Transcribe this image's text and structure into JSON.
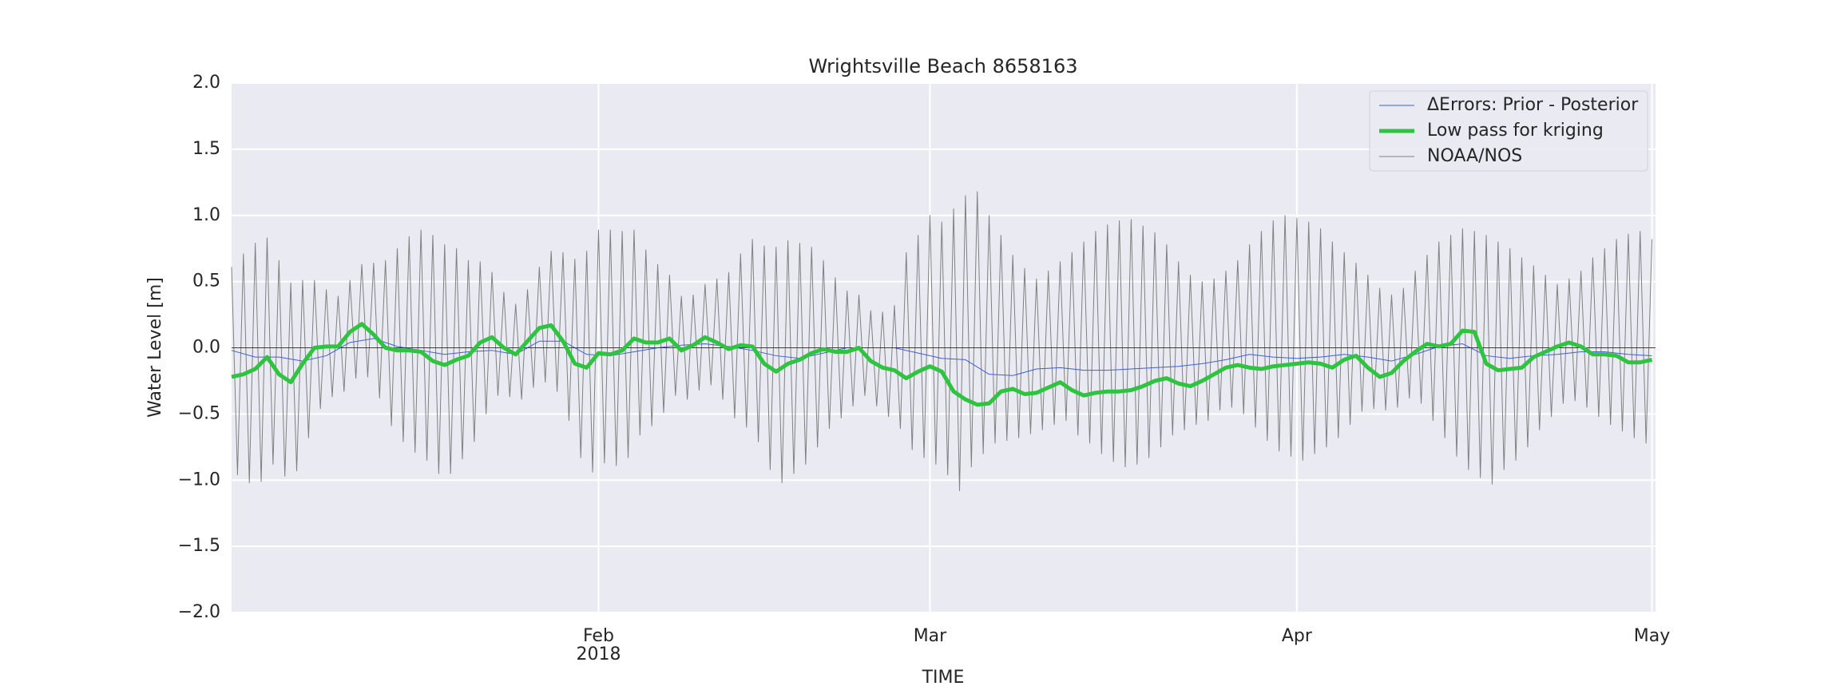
{
  "chart_data": {
    "type": "line",
    "title": "Wrightsville Beach  8658163",
    "xlabel": "TIME",
    "ylabel": "Water Level [m]",
    "xlim": [
      0,
      120.3
    ],
    "ylim": [
      -2,
      2
    ],
    "xticks": [
      {
        "value": 31,
        "label": "Feb"
      },
      {
        "value": 59,
        "label": "Mar"
      },
      {
        "value": 90,
        "label": "Apr"
      },
      {
        "value": 120,
        "label": "May"
      }
    ],
    "x_offset_label": "2018",
    "yticks": [
      {
        "value": -2,
        "label": "−2.0"
      },
      {
        "value": -1.5,
        "label": "−1.5"
      },
      {
        "value": -1,
        "label": "−1.0"
      },
      {
        "value": -0.5,
        "label": "−0.5"
      },
      {
        "value": 0,
        "label": "0.0"
      },
      0.5,
      {
        "value": 1,
        "label": "1.0"
      },
      1.5,
      {
        "value": 2,
        "label": "2.0"
      }
    ],
    "grid": true,
    "reference_line": 0,
    "legend": "upper right",
    "series": [
      {
        "name": "ΔErrors: Prior - Posterior",
        "color": "#3f5fd8",
        "width": 1,
        "x": [
          0,
          2,
          4,
          6,
          8,
          10,
          12,
          14,
          16,
          18,
          20,
          22,
          24,
          26,
          28,
          30,
          32,
          34,
          36,
          38,
          40,
          42,
          44,
          46,
          48,
          50,
          52,
          54,
          56,
          58,
          60,
          62,
          64,
          66,
          68,
          70,
          72,
          74,
          76,
          78,
          80,
          82,
          84,
          86,
          88,
          90,
          92,
          94,
          96,
          98,
          100,
          102,
          104,
          106,
          108,
          110,
          112,
          114,
          116,
          118,
          120
        ],
        "values": [
          -0.02,
          -0.07,
          -0.07,
          -0.1,
          -0.06,
          0.04,
          0.07,
          0.01,
          -0.02,
          -0.05,
          -0.03,
          -0.02,
          -0.05,
          0.05,
          0.05,
          -0.05,
          -0.06,
          -0.03,
          0.0,
          0.02,
          0.03,
          0.01,
          -0.02,
          -0.06,
          -0.08,
          -0.04,
          0.0,
          0.0,
          0.0,
          -0.04,
          -0.08,
          -0.09,
          -0.2,
          -0.21,
          -0.16,
          -0.15,
          -0.17,
          -0.17,
          -0.16,
          -0.15,
          -0.14,
          -0.12,
          -0.09,
          -0.05,
          -0.07,
          -0.08,
          -0.07,
          -0.05,
          -0.07,
          -0.1,
          -0.05,
          0.01,
          0.03,
          -0.06,
          -0.08,
          -0.06,
          -0.05,
          -0.03,
          -0.03,
          -0.05,
          -0.06
        ]
      },
      {
        "name": "Low pass for kriging",
        "color": "#2ec440",
        "width": 5,
        "x": [
          0,
          1,
          2,
          3,
          4,
          5,
          6,
          7,
          8,
          9,
          10,
          11,
          12,
          13,
          14,
          15,
          16,
          17,
          18,
          19,
          20,
          21,
          22,
          23,
          24,
          25,
          26,
          27,
          28,
          29,
          30,
          31,
          32,
          33,
          34,
          35,
          36,
          37,
          38,
          39,
          40,
          41,
          42,
          43,
          44,
          45,
          46,
          47,
          48,
          49,
          50,
          51,
          52,
          53,
          54,
          55,
          56,
          57,
          58,
          59,
          60,
          61,
          62,
          63,
          64,
          65,
          66,
          67,
          68,
          69,
          70,
          71,
          72,
          73,
          74,
          75,
          76,
          77,
          78,
          79,
          80,
          81,
          82,
          83,
          84,
          85,
          86,
          87,
          88,
          89,
          90,
          91,
          92,
          93,
          94,
          95,
          96,
          97,
          98,
          99,
          100,
          101,
          102,
          103,
          104,
          105,
          106,
          107,
          108,
          109,
          110,
          111,
          112,
          113,
          114,
          115,
          116,
          117,
          118,
          119,
          120
        ],
        "values": [
          -0.22,
          -0.2,
          -0.16,
          -0.07,
          -0.2,
          -0.26,
          -0.12,
          0.0,
          0.01,
          0.01,
          0.12,
          0.18,
          0.1,
          0.0,
          -0.02,
          -0.02,
          -0.03,
          -0.1,
          -0.13,
          -0.09,
          -0.06,
          0.04,
          0.08,
          0.0,
          -0.05,
          0.05,
          0.15,
          0.17,
          0.05,
          -0.12,
          -0.15,
          -0.04,
          -0.05,
          -0.02,
          0.07,
          0.04,
          0.04,
          0.07,
          -0.02,
          0.02,
          0.08,
          0.04,
          -0.01,
          0.02,
          0.01,
          -0.12,
          -0.18,
          -0.12,
          -0.09,
          -0.04,
          -0.01,
          -0.03,
          -0.03,
          0.0,
          -0.1,
          -0.15,
          -0.17,
          -0.23,
          -0.18,
          -0.14,
          -0.18,
          -0.33,
          -0.39,
          -0.43,
          -0.42,
          -0.33,
          -0.31,
          -0.35,
          -0.34,
          -0.3,
          -0.26,
          -0.32,
          -0.36,
          -0.34,
          -0.33,
          -0.33,
          -0.32,
          -0.29,
          -0.25,
          -0.23,
          -0.27,
          -0.29,
          -0.25,
          -0.2,
          -0.15,
          -0.13,
          -0.15,
          -0.16,
          -0.14,
          -0.13,
          -0.12,
          -0.11,
          -0.12,
          -0.15,
          -0.09,
          -0.06,
          -0.15,
          -0.22,
          -0.19,
          -0.1,
          -0.03,
          0.03,
          0.01,
          0.03,
          0.13,
          0.12,
          -0.12,
          -0.17,
          -0.16,
          -0.15,
          -0.07,
          -0.03,
          0.01,
          0.04,
          0.01,
          -0.05,
          -0.05,
          -0.06,
          -0.11,
          -0.11,
          -0.09
        ]
      },
      {
        "name": "NOAA/NOS",
        "color": "#808080",
        "width": 1,
        "x": [
          0,
          0.5,
          1,
          1.5,
          2,
          2.5,
          3,
          3.5,
          4,
          4.5,
          5,
          5.5,
          6,
          6.5,
          7,
          7.5,
          8,
          8.5,
          9,
          9.5,
          10,
          10.5,
          11,
          11.5,
          12,
          12.5,
          13,
          13.5,
          14,
          14.5,
          15,
          15.5,
          16,
          16.5,
          17,
          17.5,
          18,
          18.5,
          19,
          19.5,
          20,
          20.5,
          21,
          21.5,
          22,
          22.5,
          23,
          23.5,
          24,
          24.5,
          25,
          25.5,
          26,
          26.5,
          27,
          27.5,
          28,
          28.5,
          29,
          29.5,
          30,
          30.5,
          31,
          31.5,
          32,
          32.5,
          33,
          33.5,
          34,
          34.5,
          35,
          35.5,
          36,
          36.5,
          37,
          37.5,
          38,
          38.5,
          39,
          39.5,
          40,
          40.5,
          41,
          41.5,
          42,
          42.5,
          43,
          43.5,
          44,
          44.5,
          45,
          45.5,
          46,
          46.5,
          47,
          47.5,
          48,
          48.5,
          49,
          49.5,
          50,
          50.5,
          51,
          51.5,
          52,
          52.5,
          53,
          53.5,
          54,
          54.5,
          55,
          55.5,
          56,
          56.5,
          57,
          57.5,
          58,
          58.5,
          59,
          59.5,
          60,
          60.5,
          61,
          61.5,
          62,
          62.5,
          63,
          63.5,
          64,
          64.5,
          65,
          65.5,
          66,
          66.5,
          67,
          67.5,
          68,
          68.5,
          69,
          69.5,
          70,
          70.5,
          71,
          71.5,
          72,
          72.5,
          73,
          73.5,
          74,
          74.5,
          75,
          75.5,
          76,
          76.5,
          77,
          77.5,
          78,
          78.5,
          79,
          79.5,
          80,
          80.5,
          81,
          81.5,
          82,
          82.5,
          83,
          83.5,
          84,
          84.5,
          85,
          85.5,
          86,
          86.5,
          87,
          87.5,
          88,
          88.5,
          89,
          89.5,
          90,
          90.5,
          91,
          91.5,
          92,
          92.5,
          93,
          93.5,
          94,
          94.5,
          95,
          95.5,
          96,
          96.5,
          97,
          97.5,
          98,
          98.5,
          99,
          99.5,
          100,
          100.5,
          101,
          101.5,
          102,
          102.5,
          103,
          103.5,
          104,
          104.5,
          105,
          105.5,
          106,
          106.5,
          107,
          107.5,
          108,
          108.5,
          109,
          109.5,
          110,
          110.5,
          111,
          111.5,
          112,
          112.5,
          113,
          113.5,
          114,
          114.5,
          115,
          115.5,
          116,
          116.5,
          117,
          117.5,
          118,
          118.5,
          119,
          119.5,
          120
        ],
        "values": [
          0.61,
          -0.96,
          0.71,
          -1.02,
          0.79,
          -1.01,
          0.83,
          -0.88,
          0.66,
          -0.97,
          0.49,
          -0.93,
          0.51,
          -0.68,
          0.51,
          -0.46,
          0.44,
          -0.37,
          0.39,
          -0.33,
          0.51,
          -0.23,
          0.63,
          -0.22,
          0.64,
          -0.38,
          0.66,
          -0.59,
          0.75,
          -0.71,
          0.84,
          -0.79,
          0.89,
          -0.85,
          0.85,
          -0.95,
          0.78,
          -0.95,
          0.75,
          -0.84,
          0.66,
          -0.71,
          0.65,
          -0.5,
          0.57,
          -0.36,
          0.42,
          -0.37,
          0.33,
          -0.39,
          0.44,
          -0.3,
          0.61,
          -0.26,
          0.73,
          -0.33,
          0.72,
          -0.55,
          0.67,
          -0.83,
          0.73,
          -0.94,
          0.89,
          -0.87,
          0.89,
          -0.89,
          0.88,
          -0.83,
          0.89,
          -0.66,
          0.74,
          -0.59,
          0.63,
          -0.49,
          0.55,
          -0.36,
          0.39,
          -0.39,
          0.4,
          -0.32,
          0.48,
          -0.28,
          0.52,
          -0.39,
          0.57,
          -0.53,
          0.71,
          -0.6,
          0.82,
          -0.71,
          0.77,
          -0.92,
          0.76,
          -1.02,
          0.81,
          -0.95,
          0.79,
          -0.88,
          0.76,
          -0.75,
          0.66,
          -0.61,
          0.53,
          -0.53,
          0.43,
          -0.44,
          0.4,
          -0.36,
          0.28,
          -0.44,
          0.27,
          -0.52,
          0.32,
          -0.61,
          0.72,
          -0.77,
          0.85,
          -0.83,
          1.0,
          -0.88,
          0.95,
          -0.96,
          1.05,
          -1.08,
          1.15,
          -0.9,
          1.18,
          -0.8,
          1.0,
          -0.72,
          0.85,
          -0.7,
          0.7,
          -0.68,
          0.6,
          -0.65,
          0.52,
          -0.62,
          0.58,
          -0.58,
          0.65,
          -0.55,
          0.72,
          -0.66,
          0.8,
          -0.72,
          0.88,
          -0.8,
          0.93,
          -0.86,
          0.96,
          -0.9,
          0.97,
          -0.88,
          0.92,
          -0.83,
          0.87,
          -0.75,
          0.78,
          -0.66,
          0.65,
          -0.62,
          0.55,
          -0.58,
          0.5,
          -0.55,
          0.52,
          -0.47,
          0.58,
          -0.45,
          0.66,
          -0.5,
          0.78,
          -0.6,
          0.88,
          -0.7,
          0.96,
          -0.78,
          1.0,
          -0.82,
          0.98,
          -0.85,
          0.95,
          -0.8,
          0.9,
          -0.75,
          0.8,
          -0.68,
          0.72,
          -0.58,
          0.64,
          -0.48,
          0.55,
          -0.46,
          0.45,
          -0.47,
          0.4,
          -0.45,
          0.45,
          -0.38,
          0.58,
          -0.42,
          0.7,
          -0.55,
          0.8,
          -0.68,
          0.85,
          -0.82,
          0.9,
          -0.92,
          0.88,
          -0.98,
          0.85,
          -1.03,
          0.8,
          -0.92,
          0.75,
          -0.85,
          0.68,
          -0.75,
          0.62,
          -0.62,
          0.55,
          -0.52,
          0.48,
          -0.42,
          0.52,
          -0.4,
          0.58,
          -0.45,
          0.68,
          -0.52,
          0.75,
          -0.58,
          0.82,
          -0.63,
          0.86,
          -0.68,
          0.88,
          -0.72,
          0.82
        ]
      }
    ]
  }
}
